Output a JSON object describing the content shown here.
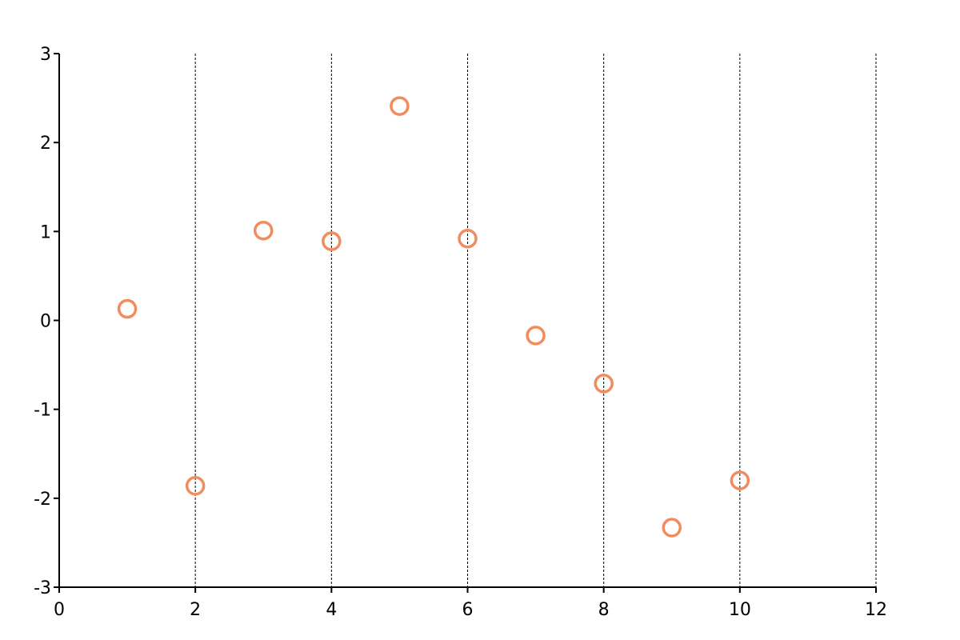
{
  "chart_data": {
    "type": "scatter",
    "title": "",
    "xlabel": "",
    "ylabel": "",
    "xlim": [
      0,
      12
    ],
    "ylim": [
      -3,
      3
    ],
    "x_ticks": [
      0,
      2,
      4,
      6,
      8,
      10,
      12
    ],
    "y_ticks": [
      -3,
      -2,
      -1,
      0,
      1,
      2,
      3
    ],
    "grid": "vertical dashed lines at x ticks",
    "legend": "none",
    "marker": "open-circle",
    "series": [
      {
        "color": "#f28c5e",
        "points": [
          {
            "x": 1,
            "y": 0.13
          },
          {
            "x": 2,
            "y": -1.86
          },
          {
            "x": 3,
            "y": 1.01
          },
          {
            "x": 4,
            "y": 0.89
          },
          {
            "x": 5,
            "y": 2.41
          },
          {
            "x": 6,
            "y": 0.92
          },
          {
            "x": 7,
            "y": -0.17
          },
          {
            "x": 8,
            "y": -0.71
          },
          {
            "x": 9,
            "y": -2.33
          },
          {
            "x": 10,
            "y": -1.8
          }
        ]
      }
    ]
  }
}
